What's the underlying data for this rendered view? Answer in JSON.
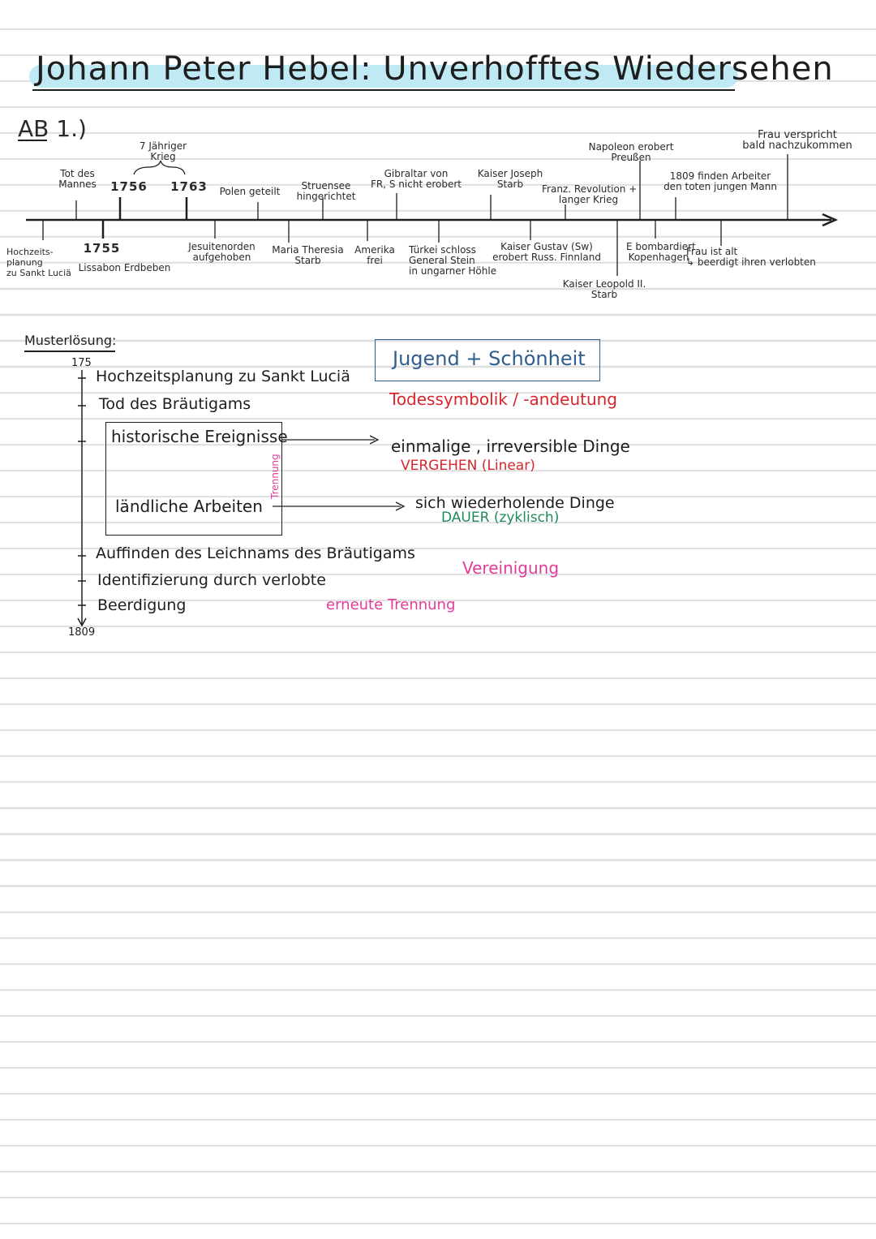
{
  "title": "Johann Peter Hebel: Unverhofftes Wiedersehen",
  "section_label": "AB 1.)",
  "timeline": {
    "above": [
      {
        "text": "Tot des\nMannes"
      },
      {
        "text": "1756"
      },
      {
        "text": "7 Jähriger\nKrieg"
      },
      {
        "text": "1763"
      },
      {
        "text": "Polen geteilt"
      },
      {
        "text": "Struensee\nhingerichtet"
      },
      {
        "text": "Gibraltar von\nFR, S nicht erobert"
      },
      {
        "text": "Kaiser Joseph\nStarb"
      },
      {
        "text": "Franz. Revolution +\nlanger Krieg"
      },
      {
        "text": "Napoleon erobert\nPreußen"
      },
      {
        "text": "1809 finden Arbeiter\nden toten jungen Mann"
      },
      {
        "text": "Frau verspricht\nbald nachzukommen"
      }
    ],
    "below": [
      {
        "text": "Hochzeits-\nplanung\nzu Sankt Luciä"
      },
      {
        "text": "1755"
      },
      {
        "text": "Lissabon Erdbeben"
      },
      {
        "text": "Jesuitenorden\naufgehoben"
      },
      {
        "text": "Maria Theresia\nStarb"
      },
      {
        "text": "Amerika\nfrei"
      },
      {
        "text": "Türkei schloss\nGeneral Stein\nin ungarner Höhle"
      },
      {
        "text": "Kaiser Gustav (Sw)\nerobert Russ. Finnland"
      },
      {
        "text": "Kaiser Leopold II.\nStarb"
      },
      {
        "text": "E bombardiert\nKopenhagen"
      },
      {
        "text": "Frau ist alt\n↳ beerdigt ihren verlobten"
      }
    ]
  },
  "solution": {
    "heading": "Musterlösung:",
    "start_year": "175",
    "end_year": "1809",
    "items": [
      "Hochzeitsplanung zu Sankt Luciä",
      "Tod des Bräutigams",
      "Auffinden des Leichnams des Bräutigams",
      "Identifizierung durch verlobte",
      "Beerdigung"
    ],
    "box_top": "historische Ereignisse",
    "box_bottom": "ländliche Arbeiten",
    "box_side": "Trennung",
    "right_box": "Jugend + Schönheit",
    "death_symbol": "Todessymbolik / -andeutung",
    "arrow1_text": "einmalige , irreversible Dinge",
    "arrow1_sub": "VERGEHEN (Linear)",
    "arrow2_text": "sich wiederholende Dinge",
    "arrow2_sub": "DAUER (zyklisch)",
    "union": "Vereinigung",
    "renewed": "erneute Trennung"
  },
  "colors": {
    "highlight": "#bfe9f3",
    "red": "#d8262b",
    "pink": "#e23a9b",
    "green": "#1f8a5a",
    "blue": "#2e5d8e"
  }
}
